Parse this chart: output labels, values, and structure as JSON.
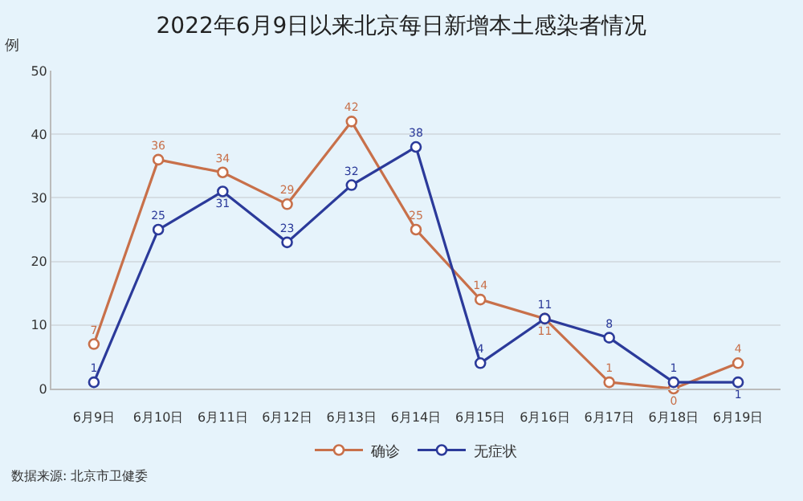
{
  "chart_data": {
    "type": "line",
    "title": "2022年6月9日以来北京每日新增本土感染者情况",
    "ylabel": "例",
    "categories": [
      "6月9日",
      "6月10日",
      "6月11日",
      "6月12日",
      "6月13日",
      "6月14日",
      "6月15日",
      "6月16日",
      "6月17日",
      "6月18日",
      "6月19日"
    ],
    "series": [
      {
        "name": "确诊",
        "color": "#c8704a",
        "values": [
          7,
          36,
          34,
          29,
          42,
          25,
          14,
          11,
          1,
          0,
          4
        ]
      },
      {
        "name": "无症状",
        "color": "#2b3a9a",
        "values": [
          1,
          25,
          31,
          23,
          32,
          38,
          4,
          11,
          8,
          1,
          1
        ]
      }
    ],
    "ylim": [
      0,
      50
    ],
    "yticks": [
      0,
      10,
      20,
      30,
      40,
      50
    ],
    "grid": "y",
    "legend": "bottom",
    "marker": "circle",
    "line_style": "solid",
    "data_labels": true,
    "annotations": [
      "数据来源: 北京市卫健委"
    ]
  }
}
